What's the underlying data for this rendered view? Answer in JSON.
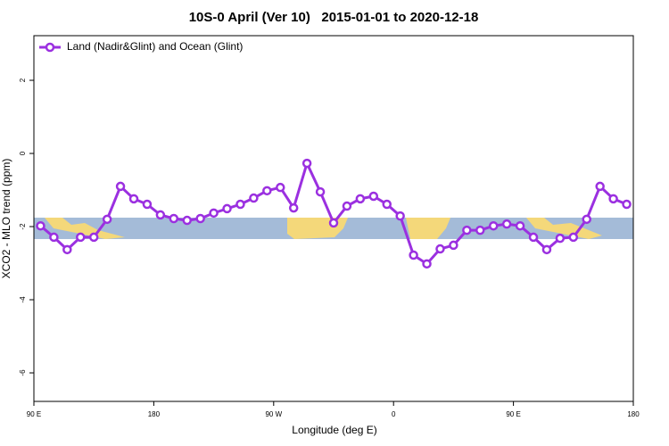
{
  "chart_data": {
    "type": "line",
    "title": "10S-0 April (Ver 10)   2015-01-01 to 2020-12-18",
    "x_label": "Longitude (deg E)",
    "y_label": "XCO2 - MLO trend (ppm)",
    "x": [
      95,
      105,
      115,
      125,
      135,
      145,
      155,
      165,
      175,
      185,
      195,
      205,
      215,
      225,
      235,
      245,
      255,
      265,
      275,
      285,
      295,
      305,
      315,
      325,
      335,
      345,
      355,
      365,
      375,
      385,
      395,
      405,
      415,
      425,
      435,
      445,
      455,
      465,
      475,
      485,
      495,
      505,
      515,
      525,
      535
    ],
    "series": [
      {
        "name": "Land (Nadir&Glint) and Ocean (Glint)",
        "color": "#9b30e0",
        "values": [
          -1.98,
          -2.29,
          -2.63,
          -2.29,
          -2.29,
          -1.8,
          -0.9,
          -1.24,
          -1.39,
          -1.68,
          -1.78,
          -1.83,
          -1.78,
          -1.63,
          -1.51,
          -1.39,
          -1.22,
          -1.02,
          -0.93,
          -1.49,
          -0.27,
          -1.05,
          -1.9,
          -1.44,
          -1.24,
          -1.17,
          -1.39,
          -1.71,
          -2.78,
          -3.02,
          -2.61,
          -2.51,
          -2.1,
          -2.1,
          -1.98,
          -1.93,
          -1.98,
          -2.29,
          -2.63,
          -2.32,
          -2.29,
          -1.8,
          -0.9,
          -1.24,
          -1.39
        ]
      }
    ],
    "xlim": [
      90,
      540
    ],
    "xticks": [
      {
        "value": 90,
        "label": "90 E"
      },
      180,
      {
        "value": 270,
        "label": "90 W"
      },
      {
        "value": 360,
        "label": "0"
      },
      {
        "value": 450,
        "label": "90 E"
      },
      {
        "value": 540,
        "label": "180"
      }
    ],
    "ylim": [
      -6.78,
      3.22
    ],
    "yticks": [
      2,
      0,
      -2,
      -4,
      -6
    ],
    "legend": "top-left"
  }
}
